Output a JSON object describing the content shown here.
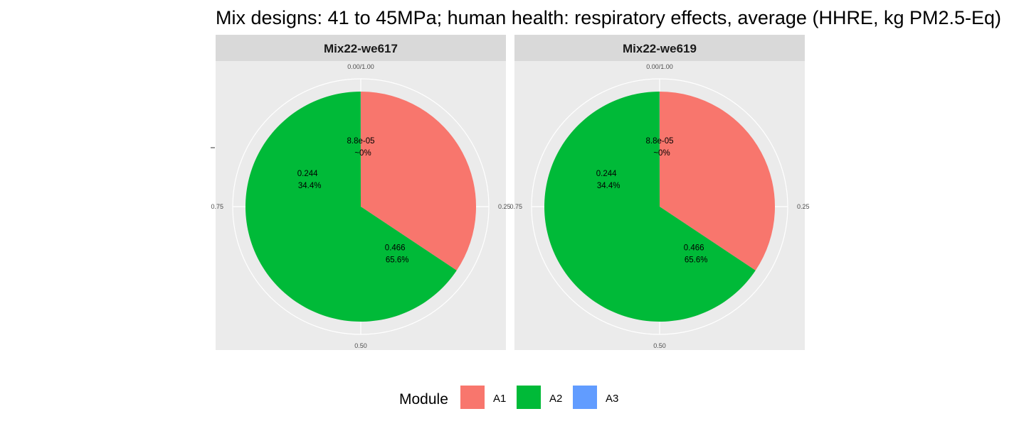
{
  "chart_data": {
    "type": "pie",
    "title": "Mix designs: 41 to 45MPa; human health: respiratory effects, average (HHRE, kg PM2.5-Eq)",
    "theta_ticks": [
      "0.00/1.00",
      "0.25",
      "0.50",
      "0.75"
    ],
    "legend": {
      "title": "Module",
      "placement": "bottom",
      "entries": [
        {
          "label": "A1",
          "color": "#F8766D"
        },
        {
          "label": "A2",
          "color": "#00BA38"
        },
        {
          "label": "A3",
          "color": "#619CFF"
        }
      ]
    },
    "panels": [
      {
        "strip": "Mix22-we617",
        "slices": [
          {
            "module": "A1",
            "value": 0.244,
            "value_label": "0.244",
            "percent_label": "34.4%"
          },
          {
            "module": "A2",
            "value": 0.466,
            "value_label": "0.466",
            "percent_label": "65.6%"
          },
          {
            "module": "A3",
            "value": 8.8e-05,
            "value_label": "8.8e-05",
            "percent_label": "~0%"
          }
        ]
      },
      {
        "strip": "Mix22-we619",
        "slices": [
          {
            "module": "A1",
            "value": 0.244,
            "value_label": "0.244",
            "percent_label": "34.4%"
          },
          {
            "module": "A2",
            "value": 0.466,
            "value_label": "0.466",
            "percent_label": "65.6%"
          },
          {
            "module": "A3",
            "value": 8.8e-05,
            "value_label": "8.8e-05",
            "percent_label": "~0%"
          }
        ]
      }
    ]
  },
  "colors": {
    "panel_bg": "#EBEBEB",
    "strip_bg": "#D9D9D9",
    "grid": "#FFFFFF"
  }
}
